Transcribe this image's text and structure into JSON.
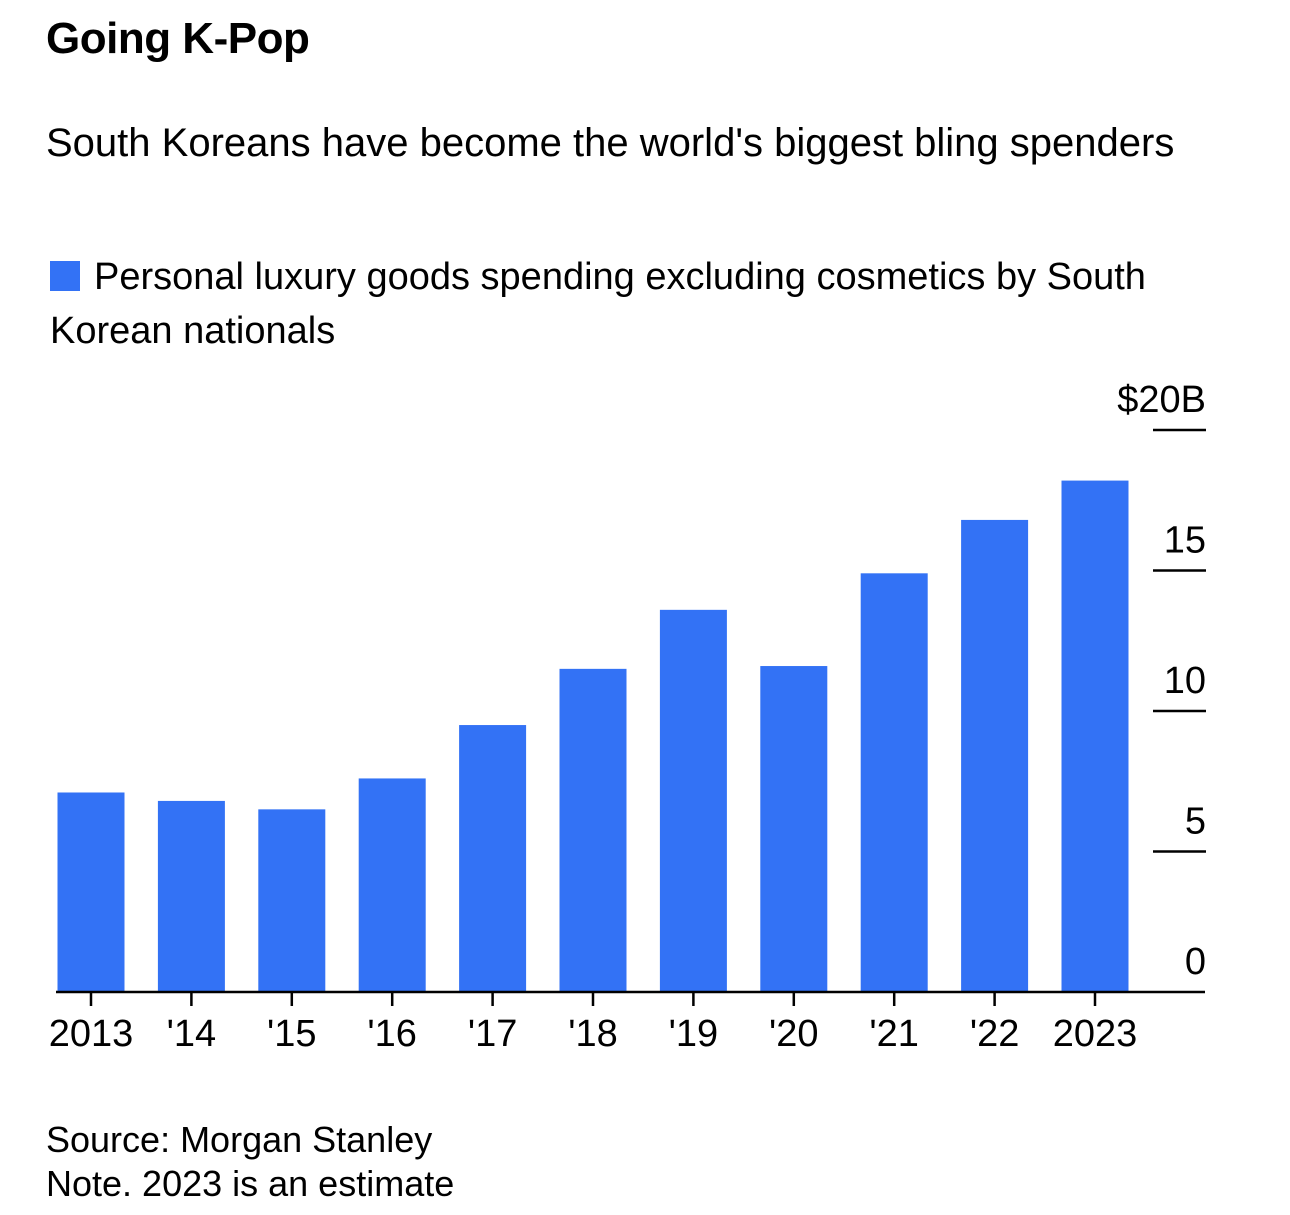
{
  "title": "Going K-Pop",
  "subtitle": "South Koreans have become the world's biggest bling spenders",
  "legend": {
    "label": "Personal luxury goods spending excluding cosmetics by South Korean nationals"
  },
  "colors": {
    "bar": "#3372F5",
    "text": "#000000",
    "axis": "#000000"
  },
  "chart_data": {
    "type": "bar",
    "categories": [
      "2013",
      "'14",
      "'15",
      "'16",
      "'17",
      "'18",
      "'19",
      "'20",
      "'21",
      "'22",
      "2023"
    ],
    "series": [
      {
        "name": "Personal luxury goods spending excluding cosmetics by South Korean nationals",
        "values": [
          7.1,
          6.8,
          6.5,
          7.6,
          9.5,
          11.5,
          13.6,
          11.6,
          14.9,
          16.8,
          18.2
        ]
      }
    ],
    "ylim": [
      0,
      20
    ],
    "yticks": [
      0,
      5,
      10,
      15,
      20
    ],
    "ytick_labels": [
      "0",
      "5",
      "10",
      "15",
      "$20B"
    ],
    "y_axis_side": "right",
    "grid": false
  },
  "footer": {
    "source": "Source: Morgan Stanley",
    "note": "Note. 2023 is an estimate"
  }
}
